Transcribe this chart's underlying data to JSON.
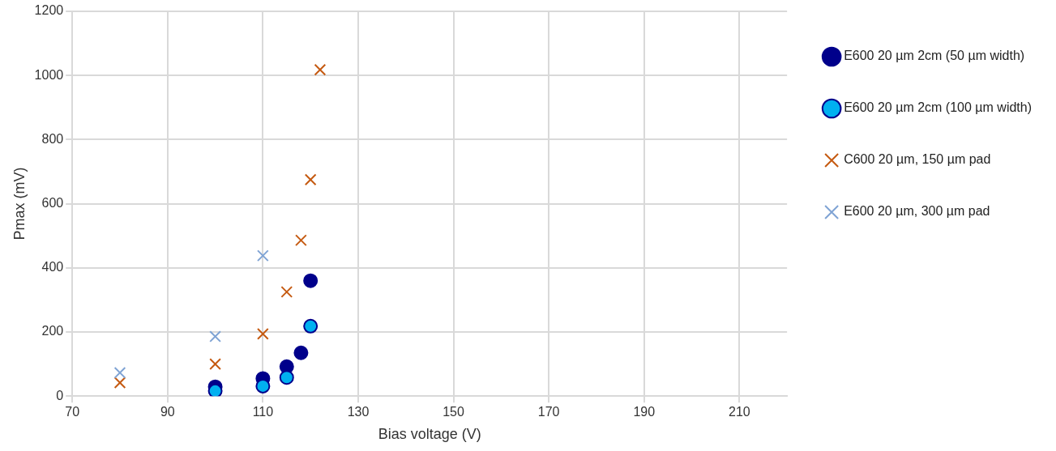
{
  "chart_data": {
    "type": "scatter",
    "xlabel": "Bias voltage (V)",
    "ylabel": "Pmax (mV)",
    "xlim": [
      70,
      220
    ],
    "xticks": [
      70,
      90,
      110,
      130,
      150,
      170,
      190,
      210
    ],
    "ylim": [
      0,
      1200
    ],
    "yticks": [
      0,
      200,
      400,
      600,
      800,
      1000,
      1200
    ],
    "grid": true,
    "legend": "top right",
    "series": [
      {
        "name": "E600 20 µm 2cm (50 µm width)",
        "color": "#00008b",
        "marker": "circle",
        "x": [
          100,
          110,
          115,
          118,
          120
        ],
        "values": [
          29,
          55,
          92,
          135,
          360
        ]
      },
      {
        "name": "E600 20 µm 2cm (100 µm width)",
        "color": "#00b0f0",
        "marker": "circle",
        "x": [
          100,
          110,
          115,
          120
        ],
        "values": [
          16,
          31,
          58,
          218
        ]
      },
      {
        "name": "C600 20 µm, 150 µm pad",
        "color": "#c55a11",
        "marker": "cross",
        "x": [
          80,
          100,
          110,
          115,
          118,
          120,
          122
        ],
        "values": [
          42,
          100,
          194,
          325,
          486,
          675,
          1018
        ]
      },
      {
        "name": "E600 20 µm, 300 µm pad",
        "color": "#7fa3d4",
        "marker": "cross",
        "x": [
          80,
          100,
          110
        ],
        "values": [
          73,
          186,
          438
        ]
      }
    ]
  }
}
